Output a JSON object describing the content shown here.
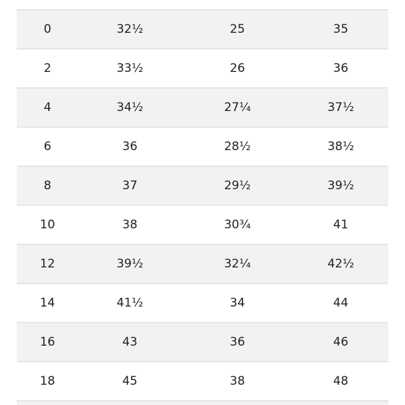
{
  "size_chart": {
    "rows": [
      [
        "0",
        "32½",
        "25",
        "35"
      ],
      [
        "2",
        "33½",
        "26",
        "36"
      ],
      [
        "4",
        "34½",
        "27¼",
        "37½"
      ],
      [
        "6",
        "36",
        "28½",
        "38½"
      ],
      [
        "8",
        "37",
        "29½",
        "39½"
      ],
      [
        "10",
        "38",
        "30¾",
        "41"
      ],
      [
        "12",
        "39½",
        "32¼",
        "42½"
      ],
      [
        "14",
        "41½",
        "34",
        "44"
      ],
      [
        "16",
        "43",
        "36",
        "46"
      ],
      [
        "18",
        "45",
        "38",
        "48"
      ]
    ]
  }
}
